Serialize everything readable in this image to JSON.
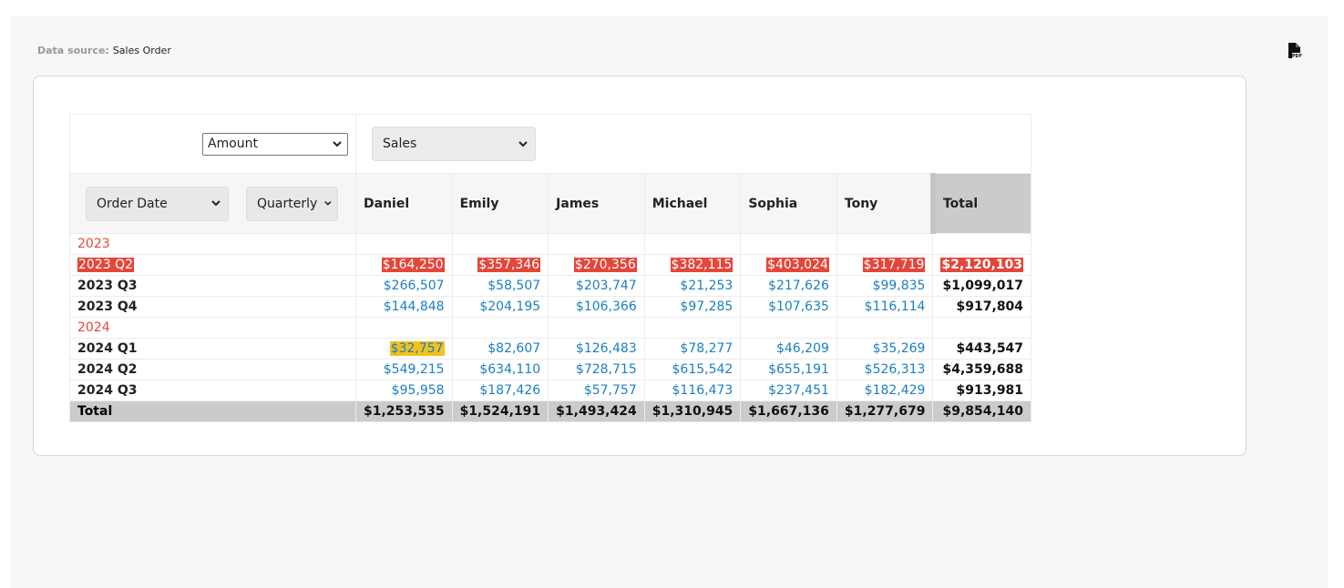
{
  "header": {
    "source_label": "Data source:",
    "source_value": "Sales Order"
  },
  "pivot": {
    "measure": "Amount",
    "column_field": "Sales",
    "row_field": "Order Date",
    "row_grouping": "Quarterly",
    "columns": [
      "Daniel",
      "Emily",
      "James",
      "Michael",
      "Sophia",
      "Tony"
    ],
    "total_label": "Total",
    "rows": [
      {
        "label": "2023",
        "group": true
      },
      {
        "label": "2023 Q2",
        "cells": [
          "$164,250",
          "$357,346",
          "$270,356",
          "$382,115",
          "$403,024",
          "$317,719"
        ],
        "total": "$2,120,103",
        "highlight": "#e3473b"
      },
      {
        "label": "2023 Q3",
        "cells": [
          "$266,507",
          "$58,507",
          "$203,747",
          "$21,253",
          "$217,626",
          "$99,835"
        ],
        "total": "$1,099,017"
      },
      {
        "label": "2023 Q4",
        "cells": [
          "$144,848",
          "$204,195",
          "$106,366",
          "$97,285",
          "$107,635",
          "$116,114"
        ],
        "total": "$917,804"
      },
      {
        "label": "2024",
        "group": true
      },
      {
        "label": "2024 Q1",
        "cells": [
          "$32,757",
          "$82,607",
          "$126,483",
          "$78,277",
          "$46,209",
          "$35,269"
        ],
        "total": "$443,547",
        "cell_highlight": {
          "column": 0,
          "color": "#f2c21b"
        }
      },
      {
        "label": "2024 Q2",
        "cells": [
          "$549,215",
          "$634,110",
          "$728,715",
          "$615,542",
          "$655,191",
          "$526,313"
        ],
        "total": "$4,359,688"
      },
      {
        "label": "2024 Q3",
        "cells": [
          "$95,958",
          "$187,426",
          "$57,757",
          "$116,473",
          "$237,451",
          "$182,429"
        ],
        "total": "$913,981"
      }
    ],
    "grand_total": {
      "cells": [
        "$1,253,535",
        "$1,524,191",
        "$1,493,424",
        "$1,310,945",
        "$1,667,136",
        "$1,277,679"
      ],
      "total": "$9,854,140"
    }
  }
}
